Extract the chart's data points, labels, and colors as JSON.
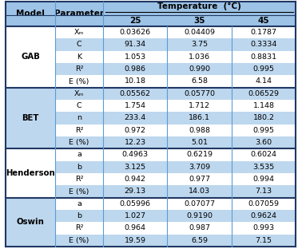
{
  "temp_header": "Temperature  (°C)",
  "rows": [
    {
      "model": "GAB",
      "param": "Xₘ",
      "v25": "0.03626",
      "v35": "0.04409",
      "v45": "0.1787",
      "row_shade": false,
      "group_shade": false
    },
    {
      "model": "",
      "param": "C",
      "v25": "91.34",
      "v35": "3.75",
      "v45": "0.3334",
      "row_shade": true,
      "group_shade": false
    },
    {
      "model": "",
      "param": "K",
      "v25": "1.053",
      "v35": "1.036",
      "v45": "0.8831",
      "row_shade": false,
      "group_shade": false
    },
    {
      "model": "",
      "param": "R²",
      "v25": "0.986",
      "v35": "0.990",
      "v45": "0.995",
      "row_shade": true,
      "group_shade": false
    },
    {
      "model": "",
      "param": "E (%)",
      "v25": "10.18",
      "v35": "6.58",
      "v45": "4.14",
      "row_shade": false,
      "group_shade": false
    },
    {
      "model": "BET",
      "param": "Xₘ",
      "v25": "0.05562",
      "v35": "0.05770",
      "v45": "0.06529",
      "row_shade": true,
      "group_shade": true
    },
    {
      "model": "",
      "param": "C",
      "v25": "1.754",
      "v35": "1.712",
      "v45": "1.148",
      "row_shade": false,
      "group_shade": true
    },
    {
      "model": "",
      "param": "n",
      "v25": "233.4",
      "v35": "186.1",
      "v45": "180.2",
      "row_shade": true,
      "group_shade": true
    },
    {
      "model": "",
      "param": "R²",
      "v25": "0.972",
      "v35": "0.988",
      "v45": "0.995",
      "row_shade": false,
      "group_shade": true
    },
    {
      "model": "",
      "param": "E (%)",
      "v25": "12.23",
      "v35": "5.01",
      "v45": "3.60",
      "row_shade": true,
      "group_shade": true
    },
    {
      "model": "Henderson",
      "param": "a",
      "v25": "0.4963",
      "v35": "0.6219",
      "v45": "0.6024",
      "row_shade": false,
      "group_shade": false
    },
    {
      "model": "",
      "param": "b",
      "v25": "3.125",
      "v35": "3.709",
      "v45": "3.535",
      "row_shade": true,
      "group_shade": false
    },
    {
      "model": "",
      "param": "R²",
      "v25": "0.942",
      "v35": "0.977",
      "v45": "0.994",
      "row_shade": false,
      "group_shade": false
    },
    {
      "model": "",
      "param": "E (%)",
      "v25": "29.13",
      "v35": "14.03",
      "v45": "7.13",
      "row_shade": true,
      "group_shade": false
    },
    {
      "model": "Oswin",
      "param": "a",
      "v25": "0.05996",
      "v35": "0.07077",
      "v45": "0.07059",
      "row_shade": false,
      "group_shade": true
    },
    {
      "model": "",
      "param": "b",
      "v25": "1.027",
      "v35": "0.9190",
      "v45": "0.9624",
      "row_shade": true,
      "group_shade": true
    },
    {
      "model": "",
      "param": "R²",
      "v25": "0.964",
      "v35": "0.987",
      "v45": "0.993",
      "row_shade": false,
      "group_shade": true
    },
    {
      "model": "",
      "param": "E (%)",
      "v25": "19.59",
      "v35": "6.59",
      "v45": "7.15",
      "row_shade": true,
      "group_shade": true
    }
  ],
  "model_groups": [
    {
      "model": "GAB",
      "start": 0,
      "end": 4
    },
    {
      "model": "BET",
      "start": 5,
      "end": 9
    },
    {
      "model": "Henderson",
      "start": 10,
      "end": 13
    },
    {
      "model": "Oswin",
      "start": 14,
      "end": 17
    }
  ],
  "shaded_color": "#bdd7ee",
  "group_shade_color": "#bdd7ee",
  "header_bg": "#9dc3e6",
  "white": "#ffffff",
  "border_color": "#1f3864",
  "group_border_color": "#2f5597",
  "thin_border": "#5b9bd5",
  "font_size_header": 7.5,
  "font_size_data": 6.8
}
